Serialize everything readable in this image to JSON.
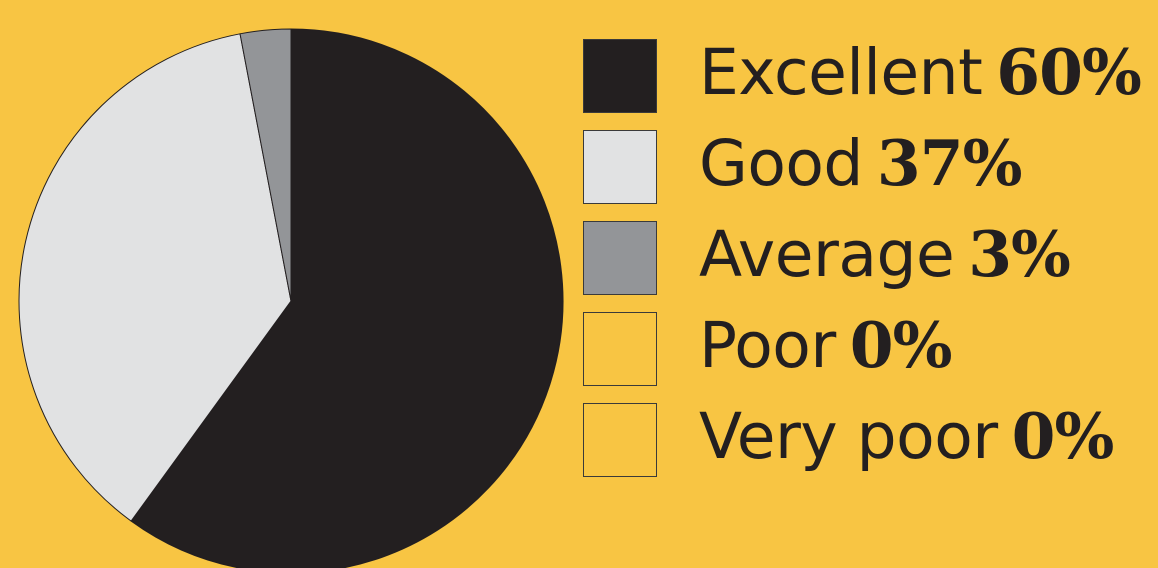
{
  "colors": {
    "background": "#f8c543",
    "excellent": "#231f20",
    "good": "#e1e2e3",
    "average": "#939598",
    "poor": "#f8c543",
    "very_poor": "#f8c543",
    "outline": "#231f20"
  },
  "chart_data": {
    "type": "pie",
    "legend_position": "right",
    "slices": [
      {
        "label": "Excellent",
        "value": 60,
        "value_text": "60%",
        "color": "#231f20"
      },
      {
        "label": "Good",
        "value": 37,
        "value_text": "37%",
        "color": "#e1e2e3"
      },
      {
        "label": "Average",
        "value": 3,
        "value_text": "3%",
        "color": "#939598"
      },
      {
        "label": "Poor",
        "value": 0,
        "value_text": "0%",
        "color": "#f8c543"
      },
      {
        "label": "Very poor",
        "value": 0,
        "value_text": "0%",
        "color": "#f8c543"
      }
    ]
  }
}
